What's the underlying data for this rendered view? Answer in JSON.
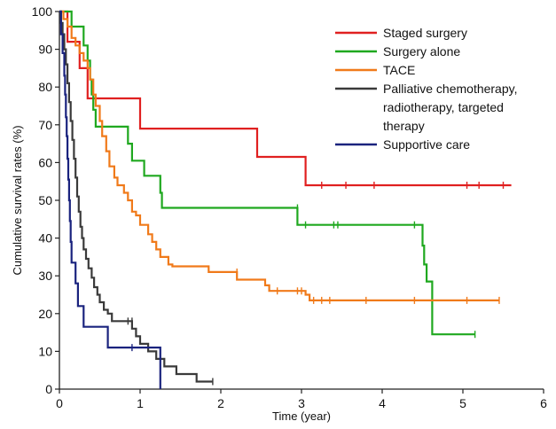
{
  "chart_data": {
    "type": "line",
    "subtype": "kaplan-meier step curves with censor marks",
    "title": "",
    "xlabel": "Time (year)",
    "ylabel": "Cumulative survival rates (%)",
    "xlim": [
      0,
      6
    ],
    "ylim": [
      0,
      100
    ],
    "x_ticks": [
      0,
      1,
      2,
      3,
      4,
      5,
      6
    ],
    "y_ticks": [
      0,
      10,
      20,
      30,
      40,
      50,
      60,
      70,
      80,
      90,
      100
    ],
    "grid": false,
    "legend_position": "top-right",
    "legend_lines": [
      [
        "Staged surgery"
      ],
      [
        "Surgery alone"
      ],
      [
        "TACE"
      ],
      [
        "Palliative chemotherapy,",
        "radiotherapy, targeted",
        "therapy"
      ],
      [
        "Supportive care"
      ]
    ],
    "series": [
      {
        "name": "Staged surgery",
        "color": "#e02020",
        "points": [
          [
            0,
            100
          ],
          [
            0.1,
            100
          ],
          [
            0.1,
            92
          ],
          [
            0.25,
            92
          ],
          [
            0.25,
            85
          ],
          [
            0.35,
            85
          ],
          [
            0.35,
            77
          ],
          [
            1.0,
            77
          ],
          [
            1.0,
            69
          ],
          [
            2.45,
            69
          ],
          [
            2.45,
            61.5
          ],
          [
            3.05,
            61.5
          ],
          [
            3.05,
            54
          ],
          [
            5.6,
            54
          ]
        ],
        "censors": [
          [
            3.25,
            54
          ],
          [
            3.55,
            54
          ],
          [
            3.9,
            54
          ],
          [
            5.05,
            54
          ],
          [
            5.2,
            54
          ],
          [
            5.5,
            54
          ]
        ]
      },
      {
        "name": "Surgery alone",
        "color": "#1fa81f",
        "points": [
          [
            0,
            100
          ],
          [
            0.15,
            100
          ],
          [
            0.15,
            96
          ],
          [
            0.3,
            96
          ],
          [
            0.3,
            91
          ],
          [
            0.35,
            91
          ],
          [
            0.35,
            87
          ],
          [
            0.38,
            87
          ],
          [
            0.38,
            82
          ],
          [
            0.4,
            82
          ],
          [
            0.4,
            78
          ],
          [
            0.42,
            78
          ],
          [
            0.42,
            74
          ],
          [
            0.45,
            74
          ],
          [
            0.45,
            69.5
          ],
          [
            0.85,
            69.5
          ],
          [
            0.85,
            65
          ],
          [
            0.9,
            65
          ],
          [
            0.9,
            60.5
          ],
          [
            1.05,
            60.5
          ],
          [
            1.05,
            56.5
          ],
          [
            1.25,
            56.5
          ],
          [
            1.25,
            52
          ],
          [
            1.27,
            52
          ],
          [
            1.27,
            48
          ],
          [
            2.95,
            48
          ],
          [
            2.95,
            43.5
          ],
          [
            4.5,
            43.5
          ],
          [
            4.5,
            38
          ],
          [
            4.52,
            38
          ],
          [
            4.52,
            33
          ],
          [
            4.55,
            33
          ],
          [
            4.55,
            28.5
          ],
          [
            4.62,
            28.5
          ],
          [
            4.62,
            14.5
          ],
          [
            5.15,
            14.5
          ]
        ],
        "censors": [
          [
            2.95,
            48
          ],
          [
            3.05,
            43.5
          ],
          [
            3.4,
            43.5
          ],
          [
            3.45,
            43.5
          ],
          [
            4.4,
            43.5
          ],
          [
            5.15,
            14.5
          ]
        ]
      },
      {
        "name": "TACE",
        "color": "#f07a1a",
        "points": [
          [
            0,
            100
          ],
          [
            0.05,
            100
          ],
          [
            0.05,
            98
          ],
          [
            0.1,
            98
          ],
          [
            0.1,
            96
          ],
          [
            0.15,
            96
          ],
          [
            0.15,
            93
          ],
          [
            0.2,
            93
          ],
          [
            0.2,
            91
          ],
          [
            0.25,
            91
          ],
          [
            0.25,
            89
          ],
          [
            0.3,
            89
          ],
          [
            0.3,
            87
          ],
          [
            0.35,
            87
          ],
          [
            0.35,
            85
          ],
          [
            0.38,
            85
          ],
          [
            0.38,
            82
          ],
          [
            0.42,
            82
          ],
          [
            0.42,
            78
          ],
          [
            0.45,
            78
          ],
          [
            0.45,
            75
          ],
          [
            0.5,
            75
          ],
          [
            0.5,
            71
          ],
          [
            0.53,
            71
          ],
          [
            0.53,
            67
          ],
          [
            0.58,
            67
          ],
          [
            0.58,
            63
          ],
          [
            0.62,
            63
          ],
          [
            0.62,
            59
          ],
          [
            0.68,
            59
          ],
          [
            0.68,
            56
          ],
          [
            0.72,
            56
          ],
          [
            0.72,
            54
          ],
          [
            0.8,
            54
          ],
          [
            0.8,
            52
          ],
          [
            0.85,
            52
          ],
          [
            0.85,
            50
          ],
          [
            0.9,
            50
          ],
          [
            0.9,
            47
          ],
          [
            0.95,
            47
          ],
          [
            0.95,
            46
          ],
          [
            1.0,
            46
          ],
          [
            1.0,
            43.5
          ],
          [
            1.1,
            43.5
          ],
          [
            1.1,
            41
          ],
          [
            1.15,
            41
          ],
          [
            1.15,
            39
          ],
          [
            1.2,
            39
          ],
          [
            1.2,
            37
          ],
          [
            1.25,
            37
          ],
          [
            1.25,
            35
          ],
          [
            1.35,
            35
          ],
          [
            1.35,
            33
          ],
          [
            1.4,
            33
          ],
          [
            1.4,
            32.5
          ],
          [
            1.85,
            32.5
          ],
          [
            1.85,
            31
          ],
          [
            2.2,
            31
          ],
          [
            2.2,
            29
          ],
          [
            2.55,
            29
          ],
          [
            2.55,
            27.5
          ],
          [
            2.6,
            27.5
          ],
          [
            2.6,
            26
          ],
          [
            3.05,
            26
          ],
          [
            3.05,
            25
          ],
          [
            3.1,
            25
          ],
          [
            3.1,
            23.5
          ],
          [
            5.45,
            23.5
          ]
        ],
        "censors": [
          [
            2.2,
            31
          ],
          [
            2.7,
            26
          ],
          [
            2.95,
            26
          ],
          [
            3.0,
            26
          ],
          [
            3.15,
            23.5
          ],
          [
            3.25,
            23.5
          ],
          [
            3.35,
            23.5
          ],
          [
            3.8,
            23.5
          ],
          [
            4.4,
            23.5
          ],
          [
            5.05,
            23.5
          ],
          [
            5.45,
            23.5
          ]
        ]
      },
      {
        "name": "Palliative chemotherapy, radiotherapy, targeted therapy",
        "color": "#3a3a3a",
        "points": [
          [
            0,
            100
          ],
          [
            0.02,
            100
          ],
          [
            0.02,
            97
          ],
          [
            0.04,
            97
          ],
          [
            0.04,
            94
          ],
          [
            0.06,
            94
          ],
          [
            0.06,
            90
          ],
          [
            0.08,
            90
          ],
          [
            0.08,
            86
          ],
          [
            0.1,
            86
          ],
          [
            0.1,
            81
          ],
          [
            0.12,
            81
          ],
          [
            0.12,
            76
          ],
          [
            0.14,
            76
          ],
          [
            0.14,
            71
          ],
          [
            0.16,
            71
          ],
          [
            0.16,
            66
          ],
          [
            0.18,
            66
          ],
          [
            0.18,
            61
          ],
          [
            0.2,
            61
          ],
          [
            0.2,
            56
          ],
          [
            0.22,
            56
          ],
          [
            0.22,
            51
          ],
          [
            0.24,
            51
          ],
          [
            0.24,
            47
          ],
          [
            0.26,
            47
          ],
          [
            0.26,
            43
          ],
          [
            0.28,
            43
          ],
          [
            0.28,
            40
          ],
          [
            0.3,
            40
          ],
          [
            0.3,
            37
          ],
          [
            0.33,
            37
          ],
          [
            0.33,
            34.5
          ],
          [
            0.36,
            34.5
          ],
          [
            0.36,
            32
          ],
          [
            0.4,
            32
          ],
          [
            0.4,
            29.5
          ],
          [
            0.43,
            29.5
          ],
          [
            0.43,
            27
          ],
          [
            0.47,
            27
          ],
          [
            0.47,
            25
          ],
          [
            0.5,
            25
          ],
          [
            0.5,
            23
          ],
          [
            0.55,
            23
          ],
          [
            0.55,
            21
          ],
          [
            0.6,
            21
          ],
          [
            0.6,
            20
          ],
          [
            0.65,
            20
          ],
          [
            0.65,
            18
          ],
          [
            0.9,
            18
          ],
          [
            0.9,
            16
          ],
          [
            0.95,
            16
          ],
          [
            0.95,
            14
          ],
          [
            1.0,
            14
          ],
          [
            1.0,
            12
          ],
          [
            1.1,
            12
          ],
          [
            1.1,
            10
          ],
          [
            1.2,
            10
          ],
          [
            1.2,
            8
          ],
          [
            1.3,
            8
          ],
          [
            1.3,
            6
          ],
          [
            1.45,
            6
          ],
          [
            1.45,
            4
          ],
          [
            1.7,
            4
          ],
          [
            1.7,
            2
          ],
          [
            1.9,
            2
          ]
        ],
        "censors": [
          [
            0.85,
            18
          ],
          [
            0.9,
            18
          ],
          [
            1.9,
            2
          ]
        ]
      },
      {
        "name": "Supportive care",
        "color": "#1a237e",
        "points": [
          [
            0,
            100
          ],
          [
            0.02,
            100
          ],
          [
            0.02,
            94
          ],
          [
            0.04,
            94
          ],
          [
            0.04,
            89
          ],
          [
            0.06,
            89
          ],
          [
            0.06,
            83
          ],
          [
            0.07,
            83
          ],
          [
            0.07,
            78
          ],
          [
            0.08,
            78
          ],
          [
            0.08,
            72
          ],
          [
            0.09,
            72
          ],
          [
            0.09,
            67
          ],
          [
            0.1,
            67
          ],
          [
            0.1,
            61
          ],
          [
            0.11,
            61
          ],
          [
            0.11,
            55.5
          ],
          [
            0.12,
            55.5
          ],
          [
            0.12,
            50
          ],
          [
            0.13,
            50
          ],
          [
            0.13,
            44.5
          ],
          [
            0.14,
            44.5
          ],
          [
            0.14,
            39
          ],
          [
            0.15,
            39
          ],
          [
            0.15,
            33.5
          ],
          [
            0.2,
            33.5
          ],
          [
            0.2,
            28
          ],
          [
            0.23,
            28
          ],
          [
            0.23,
            22
          ],
          [
            0.3,
            22
          ],
          [
            0.3,
            16.5
          ],
          [
            0.6,
            16.5
          ],
          [
            0.6,
            11
          ],
          [
            1.25,
            11
          ],
          [
            1.25,
            0
          ]
        ],
        "censors": [
          [
            0.9,
            11
          ]
        ]
      }
    ]
  }
}
